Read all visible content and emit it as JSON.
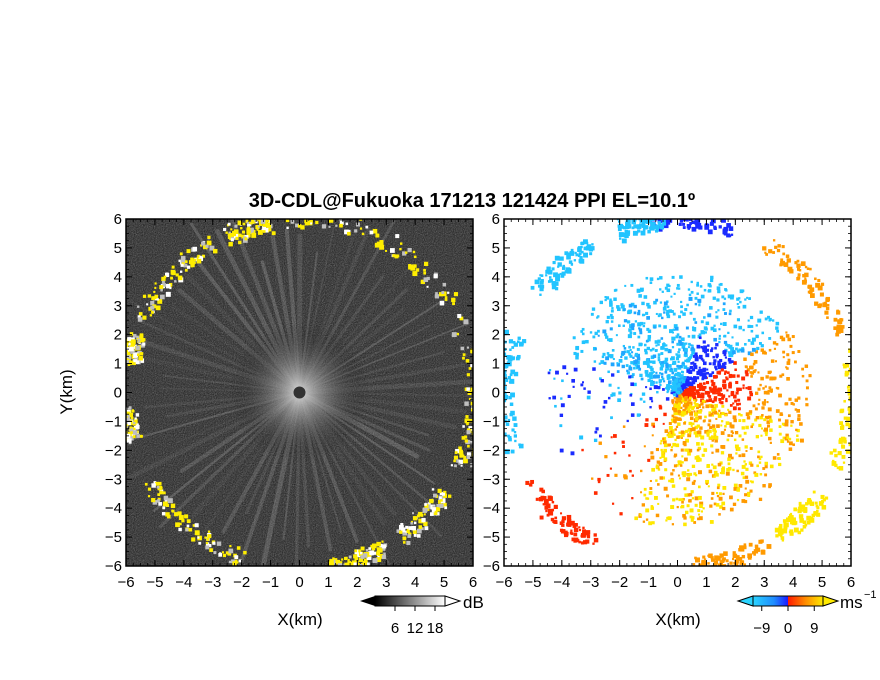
{
  "chart_data": [
    {
      "type": "heatmap",
      "panel": "left",
      "title": "3D-CDL@Fukuoka 171213 121424 PPI EL=10.1º",
      "xlabel": "X(km)",
      "ylabel": "Y(km)",
      "xlim": [
        -6,
        6
      ],
      "ylim": [
        -6,
        6
      ],
      "x_ticks": [
        "−6",
        "−5",
        "−4",
        "−3",
        "−2",
        "−1",
        "0",
        "1",
        "2",
        "3",
        "4",
        "5",
        "6"
      ],
      "y_ticks": [
        "6",
        "5",
        "4",
        "3",
        "2",
        "1",
        "0",
        "−1",
        "−2",
        "−3",
        "−4",
        "−5",
        "−6"
      ],
      "colorbar": {
        "unit": "dB",
        "ticks": [
          "6",
          "12",
          "18"
        ],
        "range": [
          0,
          21
        ],
        "colormap": "grayscale"
      },
      "background_color": "#1c1c1c",
      "highlight_color": "#ffee00"
    },
    {
      "type": "heatmap",
      "panel": "right",
      "xlabel": "X(km)",
      "ylabel": "Y(km)",
      "xlim": [
        -6,
        6
      ],
      "ylim": [
        -6,
        6
      ],
      "x_ticks": [
        "−6",
        "−5",
        "−4",
        "−3",
        "−2",
        "−1",
        "0",
        "1",
        "2",
        "3",
        "4",
        "5",
        "6"
      ],
      "y_ticks": [
        "6",
        "5",
        "4",
        "3",
        "2",
        "1",
        "0",
        "−1",
        "−2",
        "−3",
        "−4",
        "−5",
        "−6"
      ],
      "colorbar": {
        "unit": "ms",
        "unit_superscript": "−1",
        "ticks": [
          "−9",
          "0",
          "9"
        ],
        "range": [
          -12,
          12
        ],
        "colormap": "cyan-blue-red-yellow"
      },
      "background_color": "#ffffff",
      "colors": {
        "cyan": "#22c4ff",
        "blue": "#1a2bff",
        "red": "#ff2a00",
        "orange": "#ff9a00",
        "yellow": "#ffe800"
      }
    }
  ]
}
